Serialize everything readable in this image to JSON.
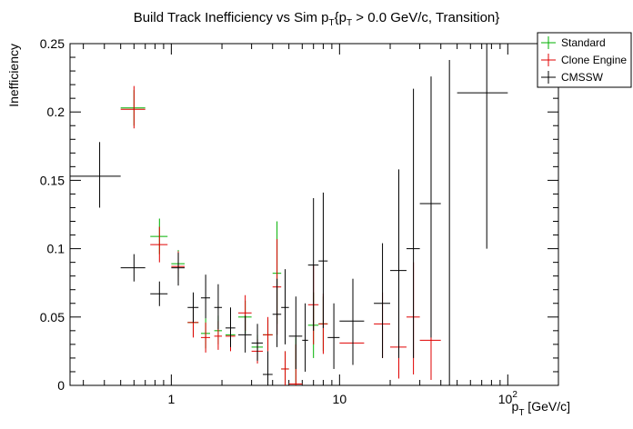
{
  "chart_data": {
    "type": "scatter",
    "title": "Build Track Inefficiency vs Sim p_{T}{p_{T} > 0.0 GeV/c, Transition}",
    "title_parts": {
      "main": "Build Track Inefficiency vs Sim p",
      "sub1": "T",
      "mid": "{p",
      "sub2": "T",
      "rest": " > 0.0 GeV/c, Transition}"
    },
    "xlabel": "p_{T} [GeV/c]",
    "xlabel_parts": {
      "main": "p",
      "sub": "T",
      "rest": " [GeV/c]"
    },
    "ylabel": "Inefficiency",
    "x_scale": "log",
    "xlim": [
      0.25,
      200
    ],
    "ylim": [
      0,
      0.25
    ],
    "y_ticks": [
      0,
      0.05,
      0.1,
      0.15,
      0.2,
      0.25
    ],
    "y_tick_labels": [
      "0",
      "0.05",
      "0.1",
      "0.15",
      "0.2",
      "0.25"
    ],
    "x_major_ticks": [
      1,
      10,
      100
    ],
    "x_tick_labels": [
      {
        "value": 1,
        "base": "1",
        "exp": ""
      },
      {
        "value": 10,
        "base": "10",
        "exp": ""
      },
      {
        "value": 100,
        "base": "10",
        "exp": "2"
      }
    ],
    "grid": false,
    "legend_position": "top-right",
    "series": [
      {
        "name": "Standard",
        "color": "#00b000",
        "points": [
          {
            "x": 0.6,
            "xlo": 0.5,
            "xhi": 0.7,
            "y": 0.203,
            "ylo": 0.19,
            "yhi": 0.216
          },
          {
            "x": 0.85,
            "xlo": 0.75,
            "xhi": 0.95,
            "y": 0.109,
            "ylo": 0.096,
            "yhi": 0.122
          },
          {
            "x": 1.1,
            "xlo": 1.0,
            "xhi": 1.2,
            "y": 0.089,
            "ylo": 0.079,
            "yhi": 0.099
          },
          {
            "x": 1.35,
            "xlo": 1.25,
            "xhi": 1.45,
            "y": 0.046,
            "ylo": 0.036,
            "yhi": 0.057
          },
          {
            "x": 1.6,
            "xlo": 1.5,
            "xhi": 1.7,
            "y": 0.038,
            "ylo": 0.027,
            "yhi": 0.049
          },
          {
            "x": 1.9,
            "xlo": 1.8,
            "xhi": 2.0,
            "y": 0.04,
            "ylo": 0.03,
            "yhi": 0.051
          },
          {
            "x": 2.25,
            "xlo": 2.1,
            "xhi": 2.4,
            "y": 0.037,
            "ylo": 0.028,
            "yhi": 0.047
          },
          {
            "x": 2.75,
            "xlo": 2.5,
            "xhi": 3.0,
            "y": 0.05,
            "ylo": 0.038,
            "yhi": 0.062
          },
          {
            "x": 3.25,
            "xlo": 3.0,
            "xhi": 3.5,
            "y": 0.028,
            "ylo": 0.019,
            "yhi": 0.037
          },
          {
            "x": 3.75,
            "xlo": 3.5,
            "xhi": 4.0,
            "y": 0.037,
            "ylo": 0.026,
            "yhi": 0.048
          },
          {
            "x": 4.25,
            "xlo": 4.0,
            "xhi": 4.5,
            "y": 0.082,
            "ylo": 0.045,
            "yhi": 0.12
          },
          {
            "x": 4.75,
            "xlo": 4.5,
            "xhi": 5.0,
            "y": 0.012,
            "ylo": 0.0,
            "yhi": 0.025
          },
          {
            "x": 5.5,
            "xlo": 5.0,
            "xhi": 6.0,
            "y": 0.001,
            "ylo": 0.0,
            "yhi": 0.035
          },
          {
            "x": 7.0,
            "xlo": 6.5,
            "xhi": 7.5,
            "y": 0.044,
            "ylo": 0.02,
            "yhi": 0.068
          },
          {
            "x": 8.0,
            "xlo": 7.5,
            "xhi": 8.5,
            "y": 0.045,
            "ylo": 0.025,
            "yhi": 0.065
          }
        ]
      },
      {
        "name": "Clone Engine",
        "color": "#e00000",
        "points": [
          {
            "x": 0.6,
            "xlo": 0.5,
            "xhi": 0.7,
            "y": 0.202,
            "ylo": 0.188,
            "yhi": 0.219
          },
          {
            "x": 0.85,
            "xlo": 0.75,
            "xhi": 0.95,
            "y": 0.103,
            "ylo": 0.09,
            "yhi": 0.116
          },
          {
            "x": 1.1,
            "xlo": 1.0,
            "xhi": 1.2,
            "y": 0.087,
            "ylo": 0.077,
            "yhi": 0.098
          },
          {
            "x": 1.35,
            "xlo": 1.25,
            "xhi": 1.45,
            "y": 0.046,
            "ylo": 0.035,
            "yhi": 0.057
          },
          {
            "x": 1.6,
            "xlo": 1.5,
            "xhi": 1.7,
            "y": 0.035,
            "ylo": 0.024,
            "yhi": 0.046
          },
          {
            "x": 1.9,
            "xlo": 1.8,
            "xhi": 2.0,
            "y": 0.036,
            "ylo": 0.026,
            "yhi": 0.047
          },
          {
            "x": 2.25,
            "xlo": 2.1,
            "xhi": 2.4,
            "y": 0.036,
            "ylo": 0.025,
            "yhi": 0.047
          },
          {
            "x": 2.75,
            "xlo": 2.5,
            "xhi": 3.0,
            "y": 0.053,
            "ylo": 0.04,
            "yhi": 0.066
          },
          {
            "x": 3.25,
            "xlo": 3.0,
            "xhi": 3.5,
            "y": 0.025,
            "ylo": 0.016,
            "yhi": 0.034
          },
          {
            "x": 3.75,
            "xlo": 3.5,
            "xhi": 4.0,
            "y": 0.037,
            "ylo": 0.025,
            "yhi": 0.05
          },
          {
            "x": 4.25,
            "xlo": 4.0,
            "xhi": 4.5,
            "y": 0.072,
            "ylo": 0.037,
            "yhi": 0.107
          },
          {
            "x": 4.75,
            "xlo": 4.5,
            "xhi": 5.0,
            "y": 0.012,
            "ylo": 0.0,
            "yhi": 0.025
          },
          {
            "x": 5.5,
            "xlo": 5.0,
            "xhi": 6.0,
            "y": 0.001,
            "ylo": 0.0,
            "yhi": 0.03
          },
          {
            "x": 7.0,
            "xlo": 6.5,
            "xhi": 7.5,
            "y": 0.059,
            "ylo": 0.03,
            "yhi": 0.088
          },
          {
            "x": 8.0,
            "xlo": 7.5,
            "xhi": 8.5,
            "y": 0.045,
            "ylo": 0.023,
            "yhi": 0.067
          },
          {
            "x": 12.0,
            "xlo": 10.0,
            "xhi": 14.0,
            "y": 0.031,
            "ylo": 0.015,
            "yhi": 0.048
          },
          {
            "x": 18.0,
            "xlo": 16.0,
            "xhi": 20.0,
            "y": 0.045,
            "ylo": 0.02,
            "yhi": 0.068
          },
          {
            "x": 22.5,
            "xlo": 20.0,
            "xhi": 25.0,
            "y": 0.028,
            "ylo": 0.005,
            "yhi": 0.055
          },
          {
            "x": 27.5,
            "xlo": 25.0,
            "xhi": 30.0,
            "y": 0.05,
            "ylo": 0.008,
            "yhi": 0.09
          },
          {
            "x": 35.0,
            "xlo": 30.0,
            "xhi": 40.0,
            "y": 0.033,
            "ylo": 0.004,
            "yhi": 0.07
          }
        ]
      },
      {
        "name": "CMSSW",
        "color": "#000000",
        "points": [
          {
            "x": 0.375,
            "xlo": 0.25,
            "xhi": 0.5,
            "y": 0.153,
            "ylo": 0.13,
            "yhi": 0.178
          },
          {
            "x": 0.6,
            "xlo": 0.5,
            "xhi": 0.7,
            "y": 0.086,
            "ylo": 0.076,
            "yhi": 0.096
          },
          {
            "x": 0.85,
            "xlo": 0.75,
            "xhi": 0.95,
            "y": 0.067,
            "ylo": 0.058,
            "yhi": 0.076
          },
          {
            "x": 1.1,
            "xlo": 1.0,
            "xhi": 1.2,
            "y": 0.086,
            "ylo": 0.073,
            "yhi": 0.097
          },
          {
            "x": 1.35,
            "xlo": 1.25,
            "xhi": 1.45,
            "y": 0.057,
            "ylo": 0.046,
            "yhi": 0.068
          },
          {
            "x": 1.6,
            "xlo": 1.5,
            "xhi": 1.7,
            "y": 0.064,
            "ylo": 0.049,
            "yhi": 0.081
          },
          {
            "x": 1.9,
            "xlo": 1.8,
            "xhi": 2.0,
            "y": 0.057,
            "ylo": 0.041,
            "yhi": 0.074
          },
          {
            "x": 2.25,
            "xlo": 2.1,
            "xhi": 2.4,
            "y": 0.042,
            "ylo": 0.028,
            "yhi": 0.057
          },
          {
            "x": 2.75,
            "xlo": 2.5,
            "xhi": 3.0,
            "y": 0.037,
            "ylo": 0.024,
            "yhi": 0.051
          },
          {
            "x": 3.25,
            "xlo": 3.0,
            "xhi": 3.5,
            "y": 0.031,
            "ylo": 0.018,
            "yhi": 0.045
          },
          {
            "x": 3.75,
            "xlo": 3.5,
            "xhi": 4.0,
            "y": 0.008,
            "ylo": 0.0,
            "yhi": 0.025
          },
          {
            "x": 4.25,
            "xlo": 4.0,
            "xhi": 4.5,
            "y": 0.052,
            "ylo": 0.028,
            "yhi": 0.078
          },
          {
            "x": 4.75,
            "xlo": 4.5,
            "xhi": 5.0,
            "y": 0.057,
            "ylo": 0.03,
            "yhi": 0.085
          },
          {
            "x": 5.5,
            "xlo": 5.0,
            "xhi": 6.0,
            "y": 0.036,
            "ylo": 0.012,
            "yhi": 0.065
          },
          {
            "x": 6.25,
            "xlo": 6.0,
            "xhi": 6.5,
            "y": 0.033,
            "ylo": 0.01,
            "yhi": 0.06
          },
          {
            "x": 7.0,
            "xlo": 6.5,
            "xhi": 7.5,
            "y": 0.088,
            "ylo": 0.04,
            "yhi": 0.137
          },
          {
            "x": 8.0,
            "xlo": 7.5,
            "xhi": 8.5,
            "y": 0.091,
            "ylo": 0.042,
            "yhi": 0.141
          },
          {
            "x": 9.25,
            "xlo": 8.5,
            "xhi": 10.0,
            "y": 0.035,
            "ylo": 0.012,
            "yhi": 0.06
          },
          {
            "x": 12.0,
            "xlo": 10.0,
            "xhi": 14.0,
            "y": 0.047,
            "ylo": 0.015,
            "yhi": 0.078
          },
          {
            "x": 18.0,
            "xlo": 16.0,
            "xhi": 20.0,
            "y": 0.06,
            "ylo": 0.02,
            "yhi": 0.104
          },
          {
            "x": 22.5,
            "xlo": 20.0,
            "xhi": 25.0,
            "y": 0.084,
            "ylo": 0.02,
            "yhi": 0.158
          },
          {
            "x": 27.5,
            "xlo": 25.0,
            "xhi": 30.0,
            "y": 0.1,
            "ylo": 0.02,
            "yhi": 0.217
          },
          {
            "x": 35.0,
            "xlo": 30.0,
            "xhi": 40.0,
            "y": 0.133,
            "ylo": 0.035,
            "yhi": 0.226
          },
          {
            "x": 45.0,
            "xlo": 40.0,
            "xhi": 50.0,
            "y": 0.0,
            "ylo": 0.0,
            "yhi": 0.238
          },
          {
            "x": 75.0,
            "xlo": 50.0,
            "xhi": 100.0,
            "y": 0.214,
            "ylo": 0.1,
            "yhi": 0.25
          }
        ]
      }
    ]
  }
}
